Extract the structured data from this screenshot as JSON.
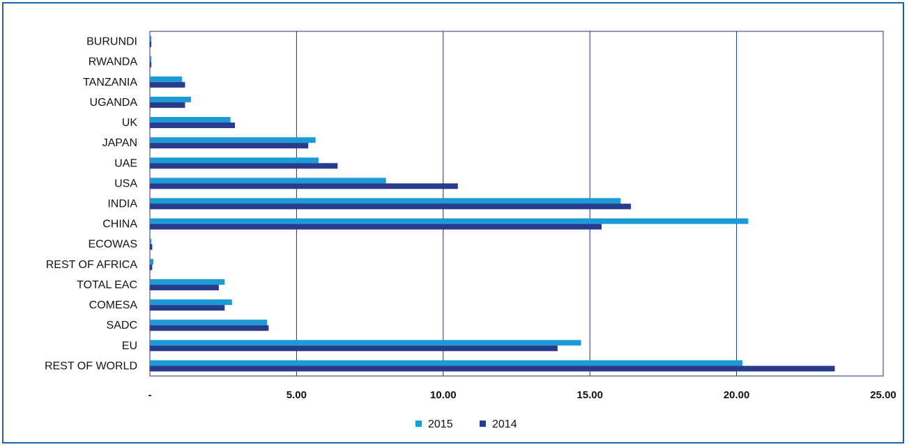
{
  "chart_data": {
    "type": "bar",
    "orientation": "horizontal",
    "categories": [
      "BURUNDI",
      "RWANDA",
      "TANZANIA",
      "UGANDA",
      "UK",
      "JAPAN",
      "UAE",
      "USA",
      "INDIA",
      "CHINA",
      "ECOWAS",
      "REST OF AFRICA",
      "TOTAL EAC",
      "COMESA",
      "SADC",
      "EU",
      "REST OF WORLD"
    ],
    "series": [
      {
        "name": "2015",
        "color": "#1c9ad6",
        "values": [
          0.05,
          0.05,
          1.1,
          1.4,
          2.75,
          5.65,
          5.75,
          8.05,
          16.05,
          20.4,
          0.05,
          0.12,
          2.55,
          2.8,
          4.0,
          14.7,
          20.2
        ]
      },
      {
        "name": "2014",
        "color": "#283b8c",
        "values": [
          0.05,
          0.05,
          1.2,
          1.2,
          2.9,
          5.4,
          6.4,
          10.5,
          16.4,
          15.4,
          0.08,
          0.08,
          2.35,
          2.55,
          4.05,
          13.9,
          23.35
        ]
      }
    ],
    "xlim": [
      0,
      25
    ],
    "xticks": [
      0,
      5,
      10,
      15,
      20,
      25
    ],
    "xtick_labels": [
      "-",
      "5.00",
      "10.00",
      "15.00",
      "20.00",
      "25.00"
    ],
    "grid": "vertical",
    "legend": "bottom-center",
    "title": "",
    "xlabel": "",
    "ylabel": ""
  }
}
